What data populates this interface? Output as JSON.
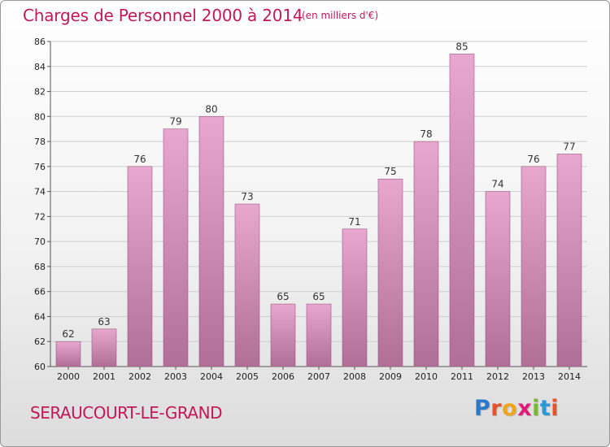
{
  "header": {
    "title": "Charges de Personnel 2000 à 2014",
    "subtitle": "(en milliers d'€)"
  },
  "footer": {
    "commune": "SERAUCOURT-LE-GRAND",
    "logo_letters": [
      {
        "char": "P",
        "color": "#2a78c7"
      },
      {
        "char": "r",
        "color": "#e8512a"
      },
      {
        "char": "o",
        "color": "#f0a51c"
      },
      {
        "char": "x",
        "color": "#e21a7a"
      },
      {
        "char": "i",
        "color": "#78b63c"
      },
      {
        "char": "t",
        "color": "#2a9ad6"
      },
      {
        "char": "i",
        "color": "#e8512a"
      }
    ]
  },
  "colors": {
    "bar_top": "#e8a7cf",
    "bar_bottom": "#b06f96",
    "bar_stroke": "#9b5a83",
    "grid": "#cfcfcf",
    "accent": "#c2185b"
  },
  "chart_data": {
    "type": "bar",
    "title": "Charges de Personnel 2000 à 2014",
    "subtitle": "(en milliers d'€)",
    "categories": [
      "2000",
      "2001",
      "2002",
      "2003",
      "2004",
      "2005",
      "2006",
      "2007",
      "2008",
      "2009",
      "2010",
      "2011",
      "2012",
      "2013",
      "2014"
    ],
    "values": [
      62,
      63,
      76,
      79,
      80,
      73,
      65,
      65,
      71,
      75,
      78,
      85,
      74,
      76,
      77
    ],
    "ylim": [
      60,
      86
    ],
    "yticks": [
      60,
      62,
      64,
      66,
      68,
      70,
      72,
      74,
      76,
      78,
      80,
      82,
      84,
      86
    ],
    "grid": true,
    "data_labels": true
  }
}
